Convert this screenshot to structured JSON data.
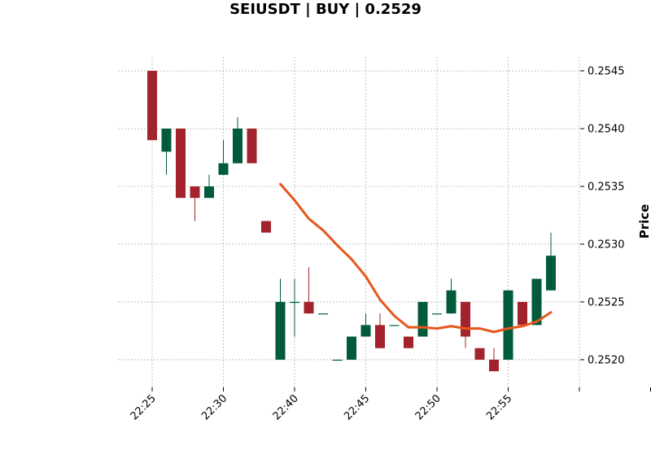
{
  "chart_data": {
    "type": "candlestick",
    "title": "SEIUSDT | BUY | 0.2529",
    "ylabel": "Price",
    "ylim": [
      0.25176,
      0.25462
    ],
    "y_ticks": [
      0.252,
      0.2525,
      0.253,
      0.2535,
      0.254,
      0.2545
    ],
    "y_tick_labels": [
      "0.2520",
      "0.2525",
      "0.2530",
      "0.2535",
      "0.2540",
      "0.2545"
    ],
    "x_ticks": [
      0,
      5,
      10,
      15,
      20,
      25,
      30,
      35
    ],
    "x_tick_labels": [
      "22:25",
      "22:30",
      "22:40",
      "22:45",
      "22:50",
      "22:55",
      "",
      ""
    ],
    "grid": true,
    "colors": {
      "up": "#005b3a",
      "down": "#a3232c",
      "ma": "#e8561c",
      "grid": "#9e9e9e"
    },
    "candles": [
      {
        "o": 0.2545,
        "h": 0.2545,
        "l": 0.2539,
        "c": 0.2539
      },
      {
        "o": 0.2538,
        "h": 0.254,
        "l": 0.2536,
        "c": 0.254
      },
      {
        "o": 0.254,
        "h": 0.254,
        "l": 0.2534,
        "c": 0.2534
      },
      {
        "o": 0.2535,
        "h": 0.2535,
        "l": 0.2532,
        "c": 0.2534
      },
      {
        "o": 0.2534,
        "h": 0.2536,
        "l": 0.2534,
        "c": 0.2535
      },
      {
        "o": 0.2536,
        "h": 0.2539,
        "l": 0.2536,
        "c": 0.2537
      },
      {
        "o": 0.2537,
        "h": 0.2541,
        "l": 0.2537,
        "c": 0.254
      },
      {
        "o": 0.254,
        "h": 0.254,
        "l": 0.2537,
        "c": 0.2537
      },
      {
        "o": 0.2532,
        "h": 0.2532,
        "l": 0.2531,
        "c": 0.2531
      },
      {
        "o": 0.252,
        "h": 0.2527,
        "l": 0.252,
        "c": 0.2525
      },
      {
        "o": 0.2525,
        "h": 0.2527,
        "l": 0.2522,
        "c": 0.2525
      },
      {
        "o": 0.2525,
        "h": 0.2528,
        "l": 0.2524,
        "c": 0.2524
      },
      {
        "o": 0.2524,
        "h": 0.2524,
        "l": 0.2524,
        "c": 0.2524
      },
      {
        "o": 0.252,
        "h": 0.252,
        "l": 0.252,
        "c": 0.252
      },
      {
        "o": 0.252,
        "h": 0.2522,
        "l": 0.252,
        "c": 0.2522
      },
      {
        "o": 0.2522,
        "h": 0.2524,
        "l": 0.2522,
        "c": 0.2523
      },
      {
        "o": 0.2523,
        "h": 0.2524,
        "l": 0.2521,
        "c": 0.2521
      },
      {
        "o": 0.2523,
        "h": 0.2523,
        "l": 0.2523,
        "c": 0.2523
      },
      {
        "o": 0.2522,
        "h": 0.2522,
        "l": 0.2521,
        "c": 0.2521
      },
      {
        "o": 0.2522,
        "h": 0.2525,
        "l": 0.2522,
        "c": 0.2525
      },
      {
        "o": 0.2524,
        "h": 0.2524,
        "l": 0.2524,
        "c": 0.2524
      },
      {
        "o": 0.2524,
        "h": 0.2527,
        "l": 0.2524,
        "c": 0.2526
      },
      {
        "o": 0.2525,
        "h": 0.2525,
        "l": 0.2521,
        "c": 0.2522
      },
      {
        "o": 0.2521,
        "h": 0.2521,
        "l": 0.252,
        "c": 0.252
      },
      {
        "o": 0.252,
        "h": 0.2521,
        "l": 0.2519,
        "c": 0.2519
      },
      {
        "o": 0.252,
        "h": 0.2526,
        "l": 0.252,
        "c": 0.2526
      },
      {
        "o": 0.2525,
        "h": 0.2525,
        "l": 0.2523,
        "c": 0.2523
      },
      {
        "o": 0.2523,
        "h": 0.2527,
        "l": 0.2523,
        "c": 0.2527
      },
      {
        "o": 0.2526,
        "h": 0.2531,
        "l": 0.2526,
        "c": 0.2529
      }
    ],
    "ma_line": {
      "start_index": 9,
      "values": [
        0.25352,
        0.25338,
        0.25322,
        0.25312,
        0.25299,
        0.25287,
        0.25272,
        0.25252,
        0.25238,
        0.25228,
        0.25228,
        0.25227,
        0.25229,
        0.25227,
        0.25227,
        0.25224,
        0.25227,
        0.25229,
        0.25233,
        0.25241
      ]
    }
  }
}
